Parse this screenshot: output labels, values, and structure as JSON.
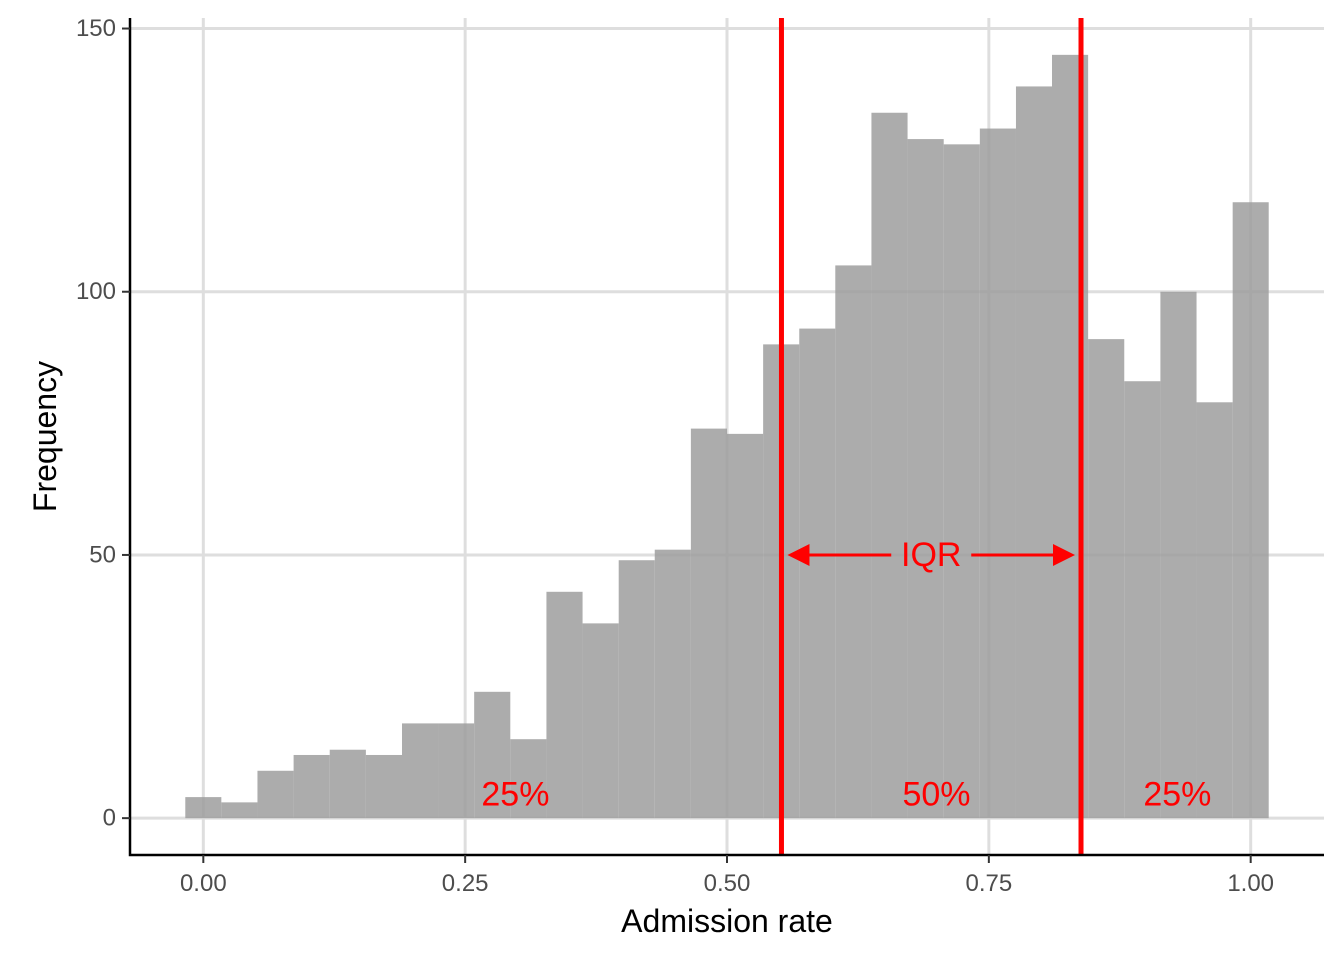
{
  "chart_data": {
    "type": "bar",
    "xlabel": "Admission rate",
    "ylabel": "Frequency",
    "xlim": [
      -0.07,
      1.07
    ],
    "ylim": [
      -7,
      152
    ],
    "x_ticks": [
      {
        "value": 0.0,
        "label": "0.00"
      },
      {
        "value": 0.25,
        "label": "0.25"
      },
      {
        "value": 0.5,
        "label": "0.50"
      },
      {
        "value": 0.75,
        "label": "0.75"
      },
      {
        "value": 1.0,
        "label": "1.00"
      }
    ],
    "y_ticks": [
      {
        "value": 0,
        "label": "0"
      },
      {
        "value": 50,
        "label": "50"
      },
      {
        "value": 100,
        "label": "100"
      },
      {
        "value": 150,
        "label": "150"
      }
    ],
    "grid": true,
    "bar_color": "#9e9e9e",
    "bins": [
      {
        "x0": -0.0172,
        "x1": 0.0172,
        "count": 4
      },
      {
        "x0": 0.0172,
        "x1": 0.0517,
        "count": 3
      },
      {
        "x0": 0.0517,
        "x1": 0.0862,
        "count": 9
      },
      {
        "x0": 0.0862,
        "x1": 0.1207,
        "count": 12
      },
      {
        "x0": 0.1207,
        "x1": 0.1552,
        "count": 13
      },
      {
        "x0": 0.1552,
        "x1": 0.1897,
        "count": 12
      },
      {
        "x0": 0.1897,
        "x1": 0.2241,
        "count": 18
      },
      {
        "x0": 0.2241,
        "x1": 0.2586,
        "count": 18
      },
      {
        "x0": 0.2586,
        "x1": 0.2931,
        "count": 24
      },
      {
        "x0": 0.2931,
        "x1": 0.3276,
        "count": 15
      },
      {
        "x0": 0.3276,
        "x1": 0.3621,
        "count": 43
      },
      {
        "x0": 0.3621,
        "x1": 0.3966,
        "count": 37
      },
      {
        "x0": 0.3966,
        "x1": 0.431,
        "count": 49
      },
      {
        "x0": 0.431,
        "x1": 0.4655,
        "count": 51
      },
      {
        "x0": 0.4655,
        "x1": 0.5,
        "count": 74
      },
      {
        "x0": 0.5,
        "x1": 0.5345,
        "count": 73
      },
      {
        "x0": 0.5345,
        "x1": 0.569,
        "count": 90
      },
      {
        "x0": 0.569,
        "x1": 0.6034,
        "count": 93
      },
      {
        "x0": 0.6034,
        "x1": 0.6379,
        "count": 105
      },
      {
        "x0": 0.6379,
        "x1": 0.6724,
        "count": 134
      },
      {
        "x0": 0.6724,
        "x1": 0.7069,
        "count": 129
      },
      {
        "x0": 0.7069,
        "x1": 0.7414,
        "count": 128
      },
      {
        "x0": 0.7414,
        "x1": 0.7759,
        "count": 131
      },
      {
        "x0": 0.7759,
        "x1": 0.8103,
        "count": 139
      },
      {
        "x0": 0.8103,
        "x1": 0.8448,
        "count": 145
      },
      {
        "x0": 0.8448,
        "x1": 0.8793,
        "count": 91
      },
      {
        "x0": 0.8793,
        "x1": 0.9138,
        "count": 83
      },
      {
        "x0": 0.9138,
        "x1": 0.9483,
        "count": 100
      },
      {
        "x0": 0.9483,
        "x1": 0.9828,
        "count": 79
      },
      {
        "x0": 0.9828,
        "x1": 1.0172,
        "count": 117
      }
    ],
    "reference_lines": {
      "color": "#ff0000",
      "q1": 0.552,
      "q3": 0.838
    },
    "annotations": {
      "color": "#ff0000",
      "iqr_label": "IQR",
      "iqr_arrow_y": 50,
      "regions": [
        {
          "label": "25%",
          "x": 0.298,
          "y": 4.5
        },
        {
          "label": "50%",
          "x": 0.7,
          "y": 4.5
        },
        {
          "label": "25%",
          "x": 0.93,
          "y": 4.5
        }
      ]
    }
  }
}
